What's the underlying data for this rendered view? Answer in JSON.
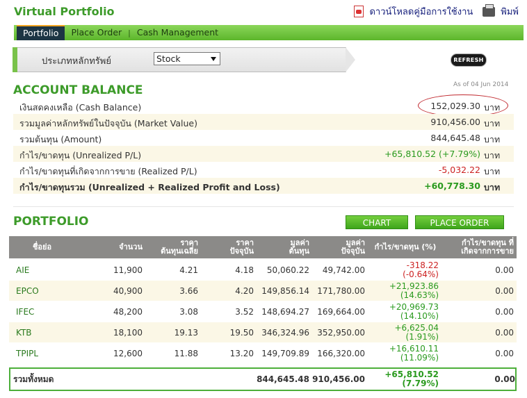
{
  "header": {
    "title": "Virtual Portfolio",
    "download_manual": "ดาวน์โหลดคู่มือการใช้งาน",
    "print": "พิมพ์"
  },
  "tabs": [
    {
      "label": "Portfolio",
      "active": true
    },
    {
      "label": "Place Order",
      "active": false
    },
    {
      "label": "Cash Management",
      "active": false
    }
  ],
  "filter": {
    "label": "ประเภทหลักทรัพย์",
    "selected": "Stock",
    "refresh_label": "REFRESH"
  },
  "account": {
    "title": "ACCOUNT BALANCE",
    "as_of": "As of 04 Jun 2014",
    "unit": "บาท",
    "rows": [
      {
        "label": "เงินสดคงเหลือ (Cash Balance)",
        "value": "152,029.30"
      },
      {
        "label": "รวมมูลค่าหลักทรัพย์ในปัจจุบัน (Market Value)",
        "value": "910,456.00"
      },
      {
        "label": "รวมต้นทุน (Amount)",
        "value": "844,645.48"
      },
      {
        "label": "กำไร/ขาดทุน (Unrealized P/L)",
        "value": "+65,810.52 (+7.79%)"
      },
      {
        "label": "กำไร/ขาดทุนที่เกิดจากการขาย (Realized P/L)",
        "value": "-5,032.22"
      },
      {
        "label": "กำไร/ขาดทุนรวม (Unrealized + Realized Profit and Loss)",
        "value": "+60,778.30"
      }
    ]
  },
  "portfolio": {
    "title": "PORTFOLIO",
    "chart_label": "CHART",
    "order_label": "PLACE ORDER",
    "columns": {
      "symbol": "ชื่อย่อ",
      "volume": "จำนวน",
      "avg_cost_1": "ราคา",
      "avg_cost_2": "ต้นทุนเฉลี่ย",
      "price_1": "ราคา",
      "price_2": "ปัจจุบัน",
      "cost_1": "มูลค่า",
      "cost_2": "ต้นทุน",
      "value_1": "มูลค่า",
      "value_2": "ปัจจุบัน",
      "pl": "กำไร/ขาดทุน (%)",
      "realized_1": "กำไร/ขาดทุน ที่",
      "realized_2": "เกิดจากการขาย"
    },
    "rows": [
      {
        "symbol": "AIE",
        "volume": "11,900",
        "avg_cost": "4.21",
        "price": "4.18",
        "cost": "50,060.22",
        "value": "49,742.00",
        "pl": "-318.22",
        "pl_pct": "(-0.64%)",
        "realized": "0.00"
      },
      {
        "symbol": "EPCO",
        "volume": "40,900",
        "avg_cost": "3.66",
        "price": "4.20",
        "cost": "149,856.14",
        "value": "171,780.00",
        "pl": "+21,923.86",
        "pl_pct": "(14.63%)",
        "realized": "0.00"
      },
      {
        "symbol": "IFEC",
        "volume": "48,200",
        "avg_cost": "3.08",
        "price": "3.52",
        "cost": "148,694.27",
        "value": "169,664.00",
        "pl": "+20,969.73",
        "pl_pct": "(14.10%)",
        "realized": "0.00"
      },
      {
        "symbol": "KTB",
        "volume": "18,100",
        "avg_cost": "19.13",
        "price": "19.50",
        "cost": "346,324.96",
        "value": "352,950.00",
        "pl": "+6,625.04",
        "pl_pct": "(1.91%)",
        "realized": "0.00"
      },
      {
        "symbol": "TPIPL",
        "volume": "12,600",
        "avg_cost": "11.88",
        "price": "13.20",
        "cost": "149,709.89",
        "value": "166,320.00",
        "pl": "+16,610.11",
        "pl_pct": "(11.09%)",
        "realized": "0.00"
      }
    ],
    "total": {
      "label": "รวมทั้งหมด",
      "cost": "844,645.48",
      "value": "910,456.00",
      "pl": "+65,810.52",
      "pl_pct": "(7.79%)",
      "realized": "0.00"
    }
  },
  "colors": {
    "brand_green": "#3d9b2a",
    "loss_red": "#cc2222",
    "header_gray": "#8b8a88"
  }
}
